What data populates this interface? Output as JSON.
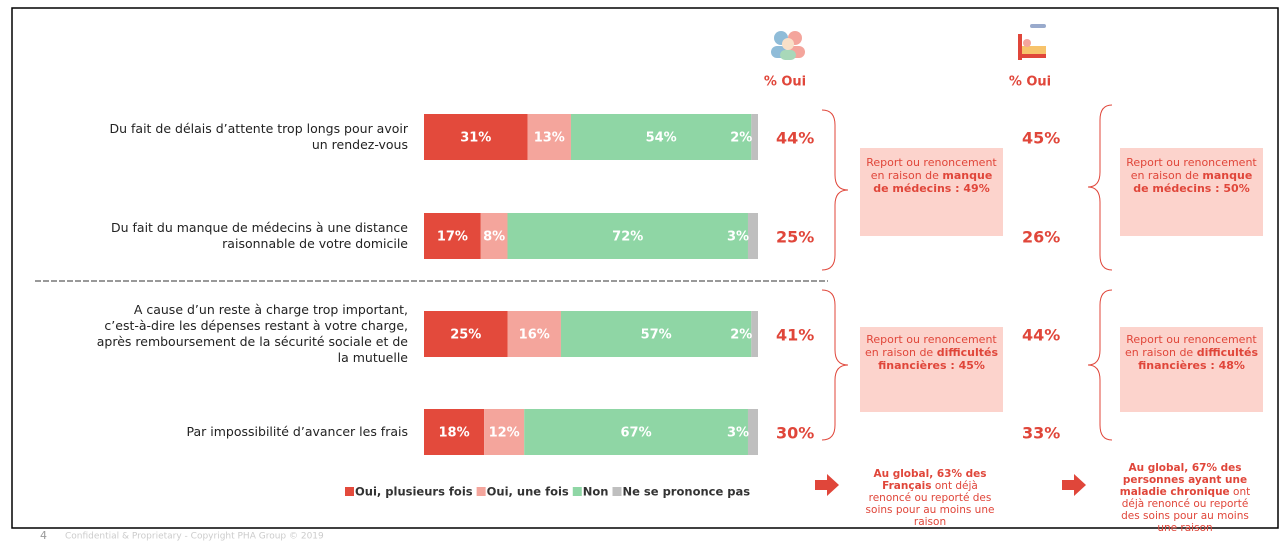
{
  "chart_data": {
    "type": "stacked-bar-horizontal",
    "categories": [
      "Du fait de délais d’attente trop longs pour avoir un rendez-vous",
      "Du fait du manque de médecins à une distance raisonnable de votre domicile",
      "A cause d’un reste à charge trop important, c’est-à-dire les dépenses restant à votre charge, après remboursement de la sécurité sociale et de la mutuelle",
      "Par impossibilité d’avancer les frais"
    ],
    "xlim": [
      0,
      100
    ],
    "series": [
      {
        "name": "Oui, plusieurs fois",
        "color": "#e34a3c",
        "values": [
          31,
          17,
          25,
          18
        ],
        "value_labels": [
          "31%",
          "17%",
          "25%",
          "18%"
        ]
      },
      {
        "name": "Oui, une fois",
        "color": "#f4a59c",
        "values": [
          13,
          8,
          16,
          12
        ],
        "value_labels": [
          "13%",
          "8%",
          "16%",
          "12%"
        ]
      },
      {
        "name": "Non",
        "color": "#8fd6a5",
        "values": [
          54,
          72,
          57,
          67
        ],
        "value_labels": [
          "54%",
          "72%",
          "57%",
          "67%"
        ]
      },
      {
        "name": "Ne se prononce pas",
        "color": "#bfbfbf",
        "values": [
          2,
          3,
          2,
          3
        ],
        "value_labels": [
          "2%",
          "3%",
          "2%",
          "3%"
        ]
      }
    ],
    "oui_columns": [
      {
        "header": "% Oui",
        "values": [
          44,
          25,
          41,
          30
        ],
        "value_labels": [
          "44%",
          "25%",
          "41%",
          "30%"
        ],
        "boxes": [
          {
            "text": "Report ou renoncement en raison de",
            "bold": "manque de médecins : 49%"
          },
          {
            "text": "Report ou renoncement en raison de",
            "bold": "difficultés financières : 45%"
          }
        ],
        "note": {
          "bold": "Au global, 63% des Français",
          "text": "ont déjà renoncé ou reporté des soins pour au moins une raison"
        }
      },
      {
        "header": "% Oui",
        "values": [
          45,
          26,
          44,
          33
        ],
        "value_labels": [
          "45%",
          "26%",
          "44%",
          "33%"
        ],
        "boxes": [
          {
            "text": "Report ou renoncement en raison de",
            "bold": "manque de médecins : 50%"
          },
          {
            "text": "Report ou renoncement en raison de",
            "bold": "difficultés financières : 48%"
          }
        ],
        "note": {
          "bold": "Au global, 67% des personnes ayant une maladie chronique",
          "text": "ont déjà renoncé ou reporté des soins pour au moins une raison"
        }
      }
    ],
    "footer": "Confidential & Proprietary - Copyright PHA Group © 2019",
    "page_number": "4"
  }
}
